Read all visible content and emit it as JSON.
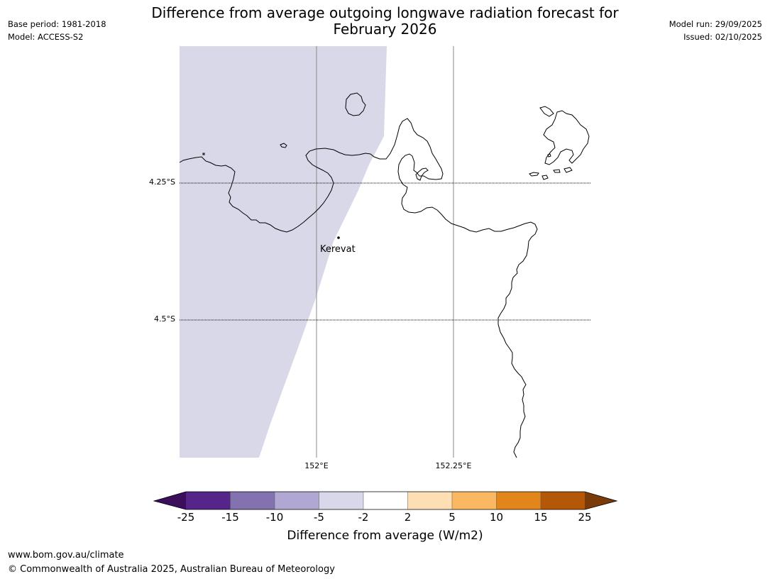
{
  "title_line1": "Difference from average outgoing longwave radiation forecast for",
  "title_line2": "February 2026",
  "meta_left": {
    "base_period": "Base period: 1981-2018",
    "model": "Model: ACCESS-S2"
  },
  "meta_right": {
    "model_run": "Model run: 29/09/2025",
    "issued": "Issued: 02/10/2025"
  },
  "map": {
    "lat_labels": [
      "4.25°S",
      "4.5°S"
    ],
    "lon_labels": [
      "152°E",
      "152.25°E"
    ],
    "place_label": "Kerevat",
    "shading_color": "#d8d8e8",
    "coast_color": "#000000"
  },
  "colorbar": {
    "ticks": [
      "-25",
      "-15",
      "-10",
      "-5",
      "-2",
      "2",
      "5",
      "10",
      "15",
      "25"
    ],
    "colors": [
      "#3b0f5c",
      "#56258a",
      "#8472b0",
      "#b0a8d2",
      "#d8d8ea",
      "#ffffff",
      "#fddfb3",
      "#fbb862",
      "#e2851a",
      "#b45807",
      "#7a3b09"
    ],
    "title": "Difference from average (W/m2)"
  },
  "footer": {
    "url": "www.bom.gov.au/climate",
    "copyright": "© Commonwealth of Australia 2025, Australian Bureau of Meteorology"
  }
}
